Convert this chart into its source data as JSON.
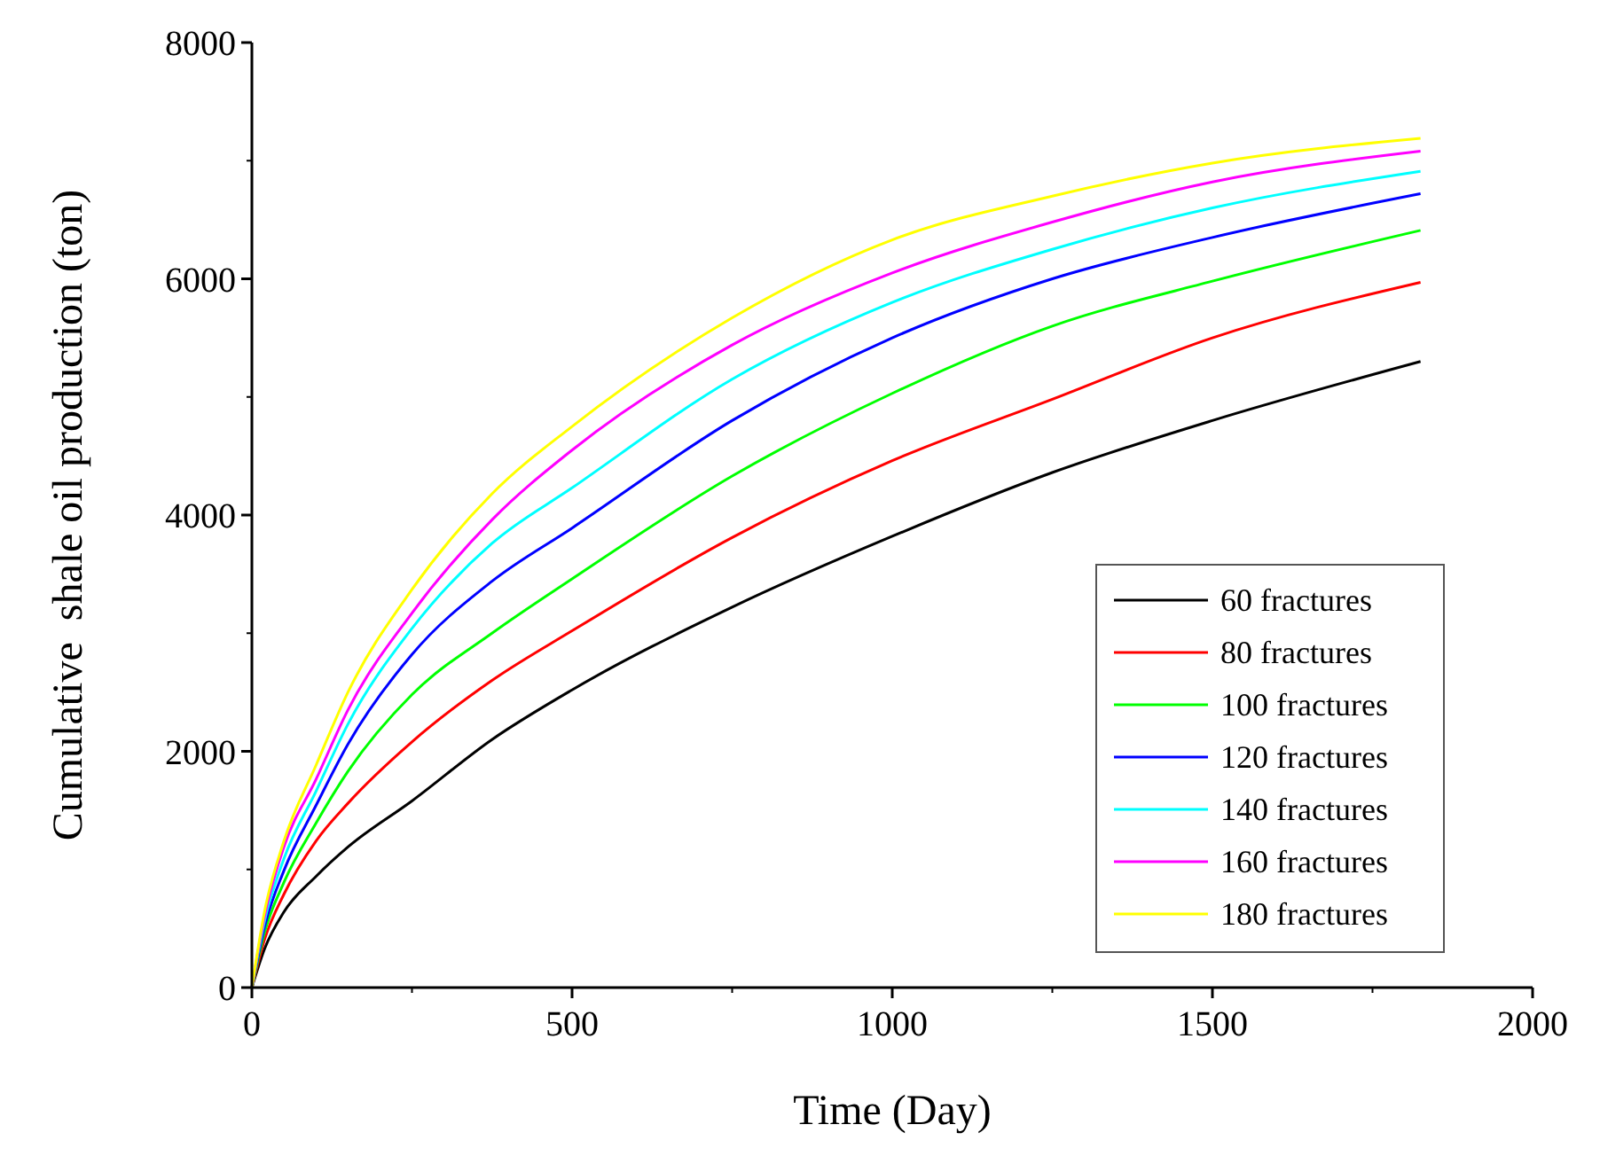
{
  "chart_data": {
    "type": "line",
    "xlabel": "Time (Day)",
    "ylabel": "Cumulative  shale oil production (ton)",
    "xlim": [
      0,
      2000
    ],
    "xticks": [
      0,
      500,
      1000,
      1500,
      2000
    ],
    "ylim": [
      0,
      8000
    ],
    "yticks": [
      0,
      2000,
      4000,
      6000,
      8000
    ],
    "x": [
      0,
      20,
      50,
      100,
      150,
      250,
      375,
      500,
      750,
      1000,
      1250,
      1500,
      1825
    ],
    "legend": "bottom right",
    "grid": false,
    "marker": "none",
    "line_style": "solid",
    "series": [
      {
        "name": "60 fractures",
        "color": "#000000",
        "values": [
          0,
          330,
          640,
          940,
          1190,
          1580,
          2100,
          2520,
          3220,
          3820,
          4360,
          4800,
          5300
        ]
      },
      {
        "name": "80 fractures",
        "color": "#ff0000",
        "values": [
          0,
          410,
          790,
          1240,
          1560,
          2080,
          2600,
          3020,
          3810,
          4460,
          4980,
          5500,
          5970
        ]
      },
      {
        "name": "100 fractures",
        "color": "#00ff00",
        "values": [
          0,
          470,
          890,
          1390,
          1830,
          2480,
          3000,
          3460,
          4330,
          5030,
          5600,
          5980,
          6410
        ]
      },
      {
        "name": "120 fractures",
        "color": "#0000ff",
        "values": [
          0,
          520,
          990,
          1540,
          2060,
          2820,
          3440,
          3890,
          4800,
          5500,
          6000,
          6350,
          6720
        ]
      },
      {
        "name": "140 fractures",
        "color": "#00ffff",
        "values": [
          0,
          570,
          1090,
          1660,
          2230,
          3040,
          3760,
          4230,
          5150,
          5800,
          6250,
          6600,
          6910
        ]
      },
      {
        "name": "160 fractures",
        "color": "#ff00ff",
        "values": [
          0,
          610,
          1190,
          1760,
          2350,
          3170,
          3960,
          4550,
          5440,
          6050,
          6480,
          6820,
          7080
        ]
      },
      {
        "name": "180 fractures",
        "color": "#ffff00",
        "values": [
          0,
          650,
          1240,
          1880,
          2500,
          3370,
          4180,
          4750,
          5670,
          6330,
          6700,
          6980,
          7190
        ]
      }
    ]
  }
}
